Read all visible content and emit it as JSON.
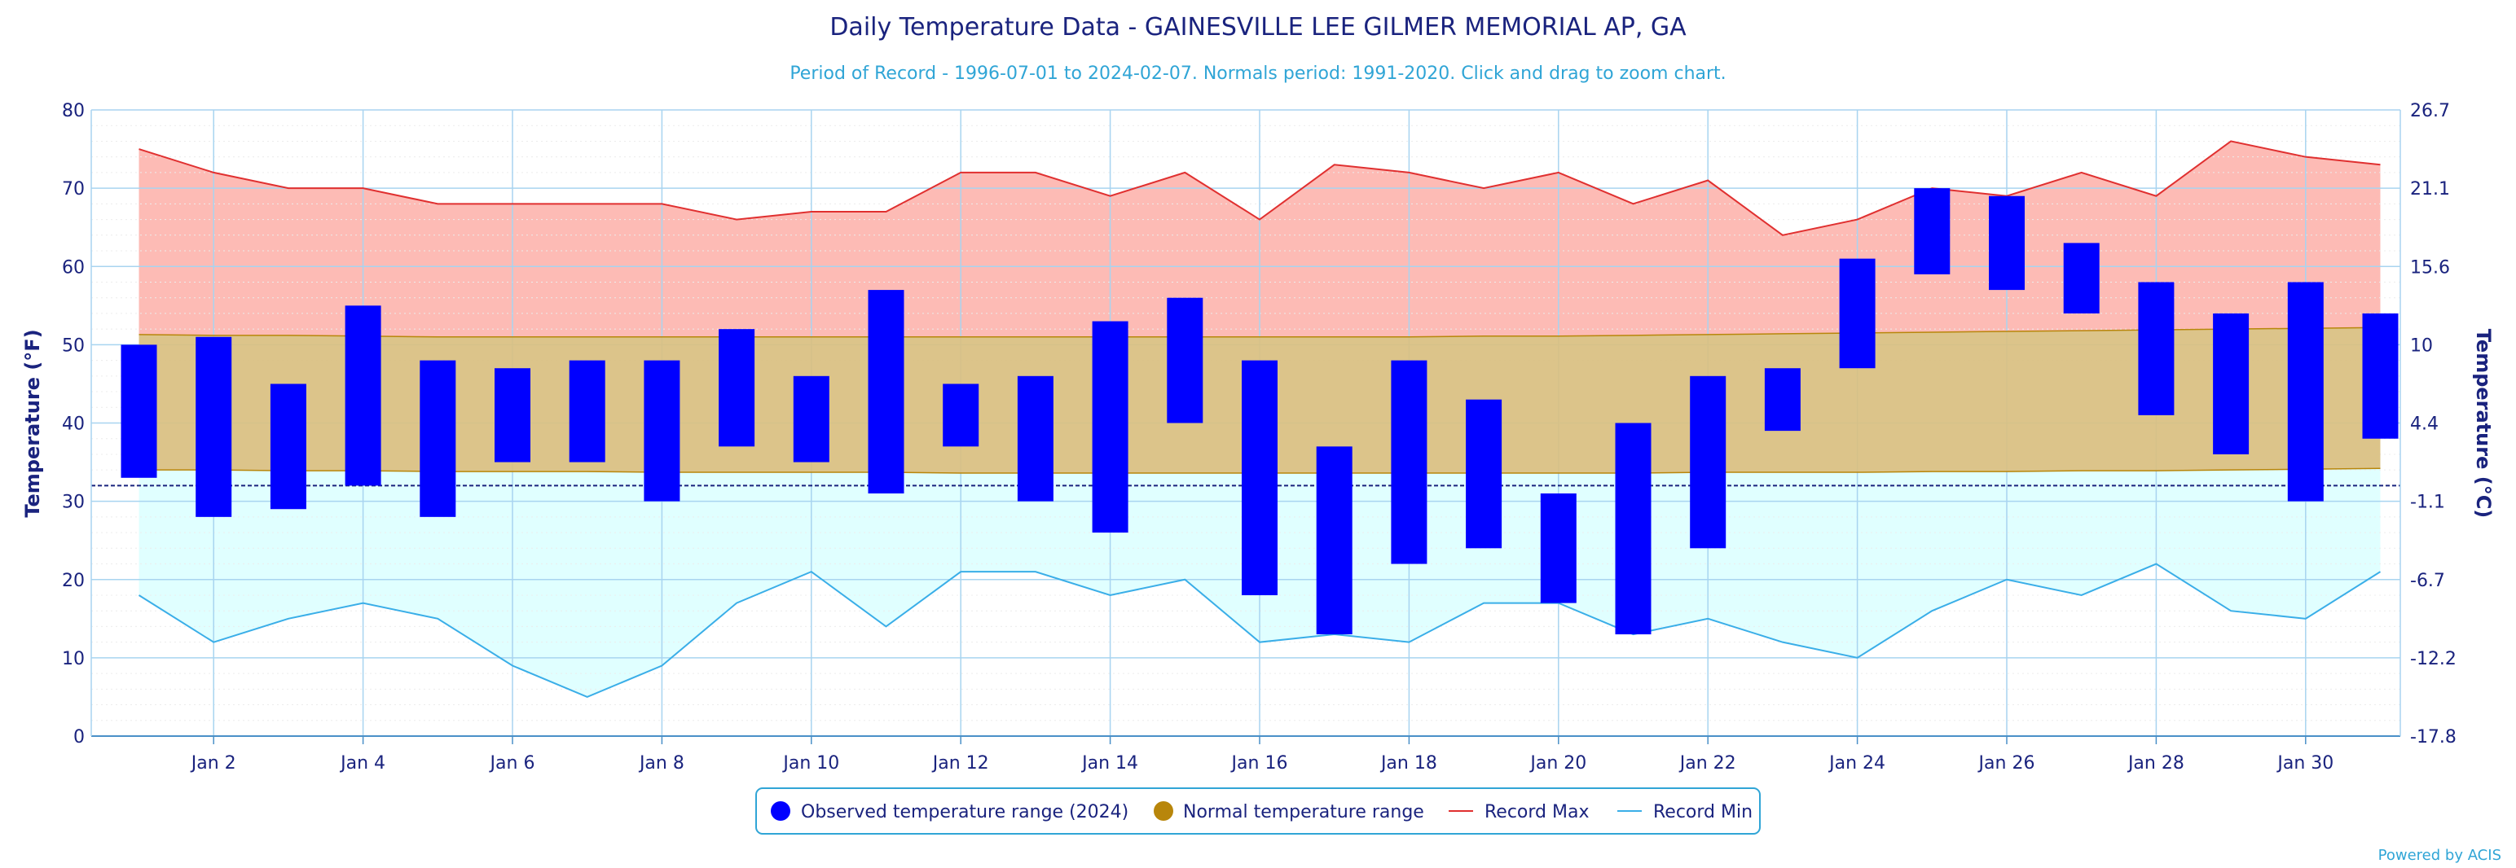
{
  "title": "Daily Temperature Data - GAINESVILLE LEE GILMER MEMORIAL AP, GA",
  "subtitle": "Period of Record - 1996-07-01 to 2024-02-07. Normals period: 1991-2020. Click and drag to zoom chart.",
  "credit": "Powered by ACIS",
  "colors": {
    "observed": "#0000ff",
    "normal_fill": "#d9bf80",
    "normal_line": "#b8860b",
    "record_max_fill": "#fdbbb5",
    "record_max_line": "#e03030",
    "record_min_fill": "#e0ffff",
    "record_min_line": "#3aaee8",
    "freezing_line": "#1a237e",
    "grid": "#a8d4f0"
  },
  "chart_data": {
    "type": "bar",
    "xlabel": "",
    "ylabel": "Temperature (°F)",
    "ylabel_right": "Temperature (°C)",
    "ylim": [
      0,
      80
    ],
    "yticks": [
      0,
      10,
      20,
      30,
      40,
      50,
      60,
      70,
      80
    ],
    "yticks_right": [
      "-17.8",
      "-12.2",
      "-6.7",
      "-1.1",
      "4.4",
      "10",
      "15.6",
      "21.1",
      "26.7"
    ],
    "freezing_line_value": 32,
    "days": [
      1,
      2,
      3,
      4,
      5,
      6,
      7,
      8,
      9,
      10,
      11,
      12,
      13,
      14,
      15,
      16,
      17,
      18,
      19,
      20,
      21,
      22,
      23,
      24,
      25,
      26,
      27,
      28,
      29,
      30,
      31
    ],
    "x_tick_days": [
      2,
      4,
      6,
      8,
      10,
      12,
      14,
      16,
      18,
      20,
      22,
      24,
      26,
      28,
      30
    ],
    "x_tick_labels": [
      "Jan 2",
      "Jan 4",
      "Jan 6",
      "Jan 8",
      "Jan 10",
      "Jan 12",
      "Jan 14",
      "Jan 16",
      "Jan 18",
      "Jan 20",
      "Jan 22",
      "Jan 24",
      "Jan 26",
      "Jan 28",
      "Jan 30"
    ],
    "grid": true,
    "legend_position": "bottom-center",
    "series": [
      {
        "name": "Observed temperature range (2024)",
        "type": "floating-bar",
        "high": [
          50,
          51,
          45,
          55,
          48,
          47,
          48,
          48,
          52,
          46,
          57,
          45,
          46,
          53,
          56,
          48,
          37,
          48,
          43,
          31,
          40,
          46,
          47,
          61,
          70,
          69,
          63,
          58,
          54,
          58,
          54
        ],
        "low": [
          33,
          28,
          29,
          32,
          28,
          35,
          35,
          30,
          37,
          35,
          31,
          37,
          30,
          26,
          40,
          18,
          13,
          22,
          24,
          17,
          13,
          24,
          39,
          47,
          59,
          57,
          54,
          41,
          36,
          30,
          38
        ]
      },
      {
        "name": "Normal temperature range",
        "type": "area-range",
        "high": [
          51.3,
          51.2,
          51.2,
          51.1,
          51.0,
          51.0,
          51.0,
          51.0,
          51.0,
          51.0,
          51.0,
          51.0,
          51.0,
          51.0,
          51.0,
          51.0,
          51.0,
          51.0,
          51.1,
          51.1,
          51.2,
          51.3,
          51.4,
          51.5,
          51.6,
          51.7,
          51.8,
          51.9,
          52.0,
          52.1,
          52.2
        ],
        "low": [
          34.0,
          34.0,
          33.9,
          33.9,
          33.8,
          33.8,
          33.8,
          33.7,
          33.7,
          33.7,
          33.7,
          33.6,
          33.6,
          33.6,
          33.6,
          33.6,
          33.6,
          33.6,
          33.6,
          33.6,
          33.6,
          33.7,
          33.7,
          33.7,
          33.8,
          33.8,
          33.9,
          33.9,
          34.0,
          34.1,
          34.2
        ]
      },
      {
        "name": "Record Max",
        "type": "line",
        "values": [
          75,
          72,
          70,
          70,
          68,
          68,
          68,
          68,
          66,
          67,
          67,
          72,
          72,
          69,
          72,
          66,
          73,
          72,
          70,
          72,
          68,
          71,
          64,
          66,
          70,
          69,
          72,
          69,
          76,
          74,
          73
        ]
      },
      {
        "name": "Record Min",
        "type": "line",
        "values": [
          18,
          12,
          15,
          17,
          15,
          9,
          5,
          9,
          17,
          21,
          14,
          21,
          21,
          18,
          20,
          12,
          13,
          12,
          17,
          17,
          13,
          15,
          12,
          10,
          16,
          20,
          18,
          22,
          16,
          15,
          21
        ]
      }
    ]
  }
}
